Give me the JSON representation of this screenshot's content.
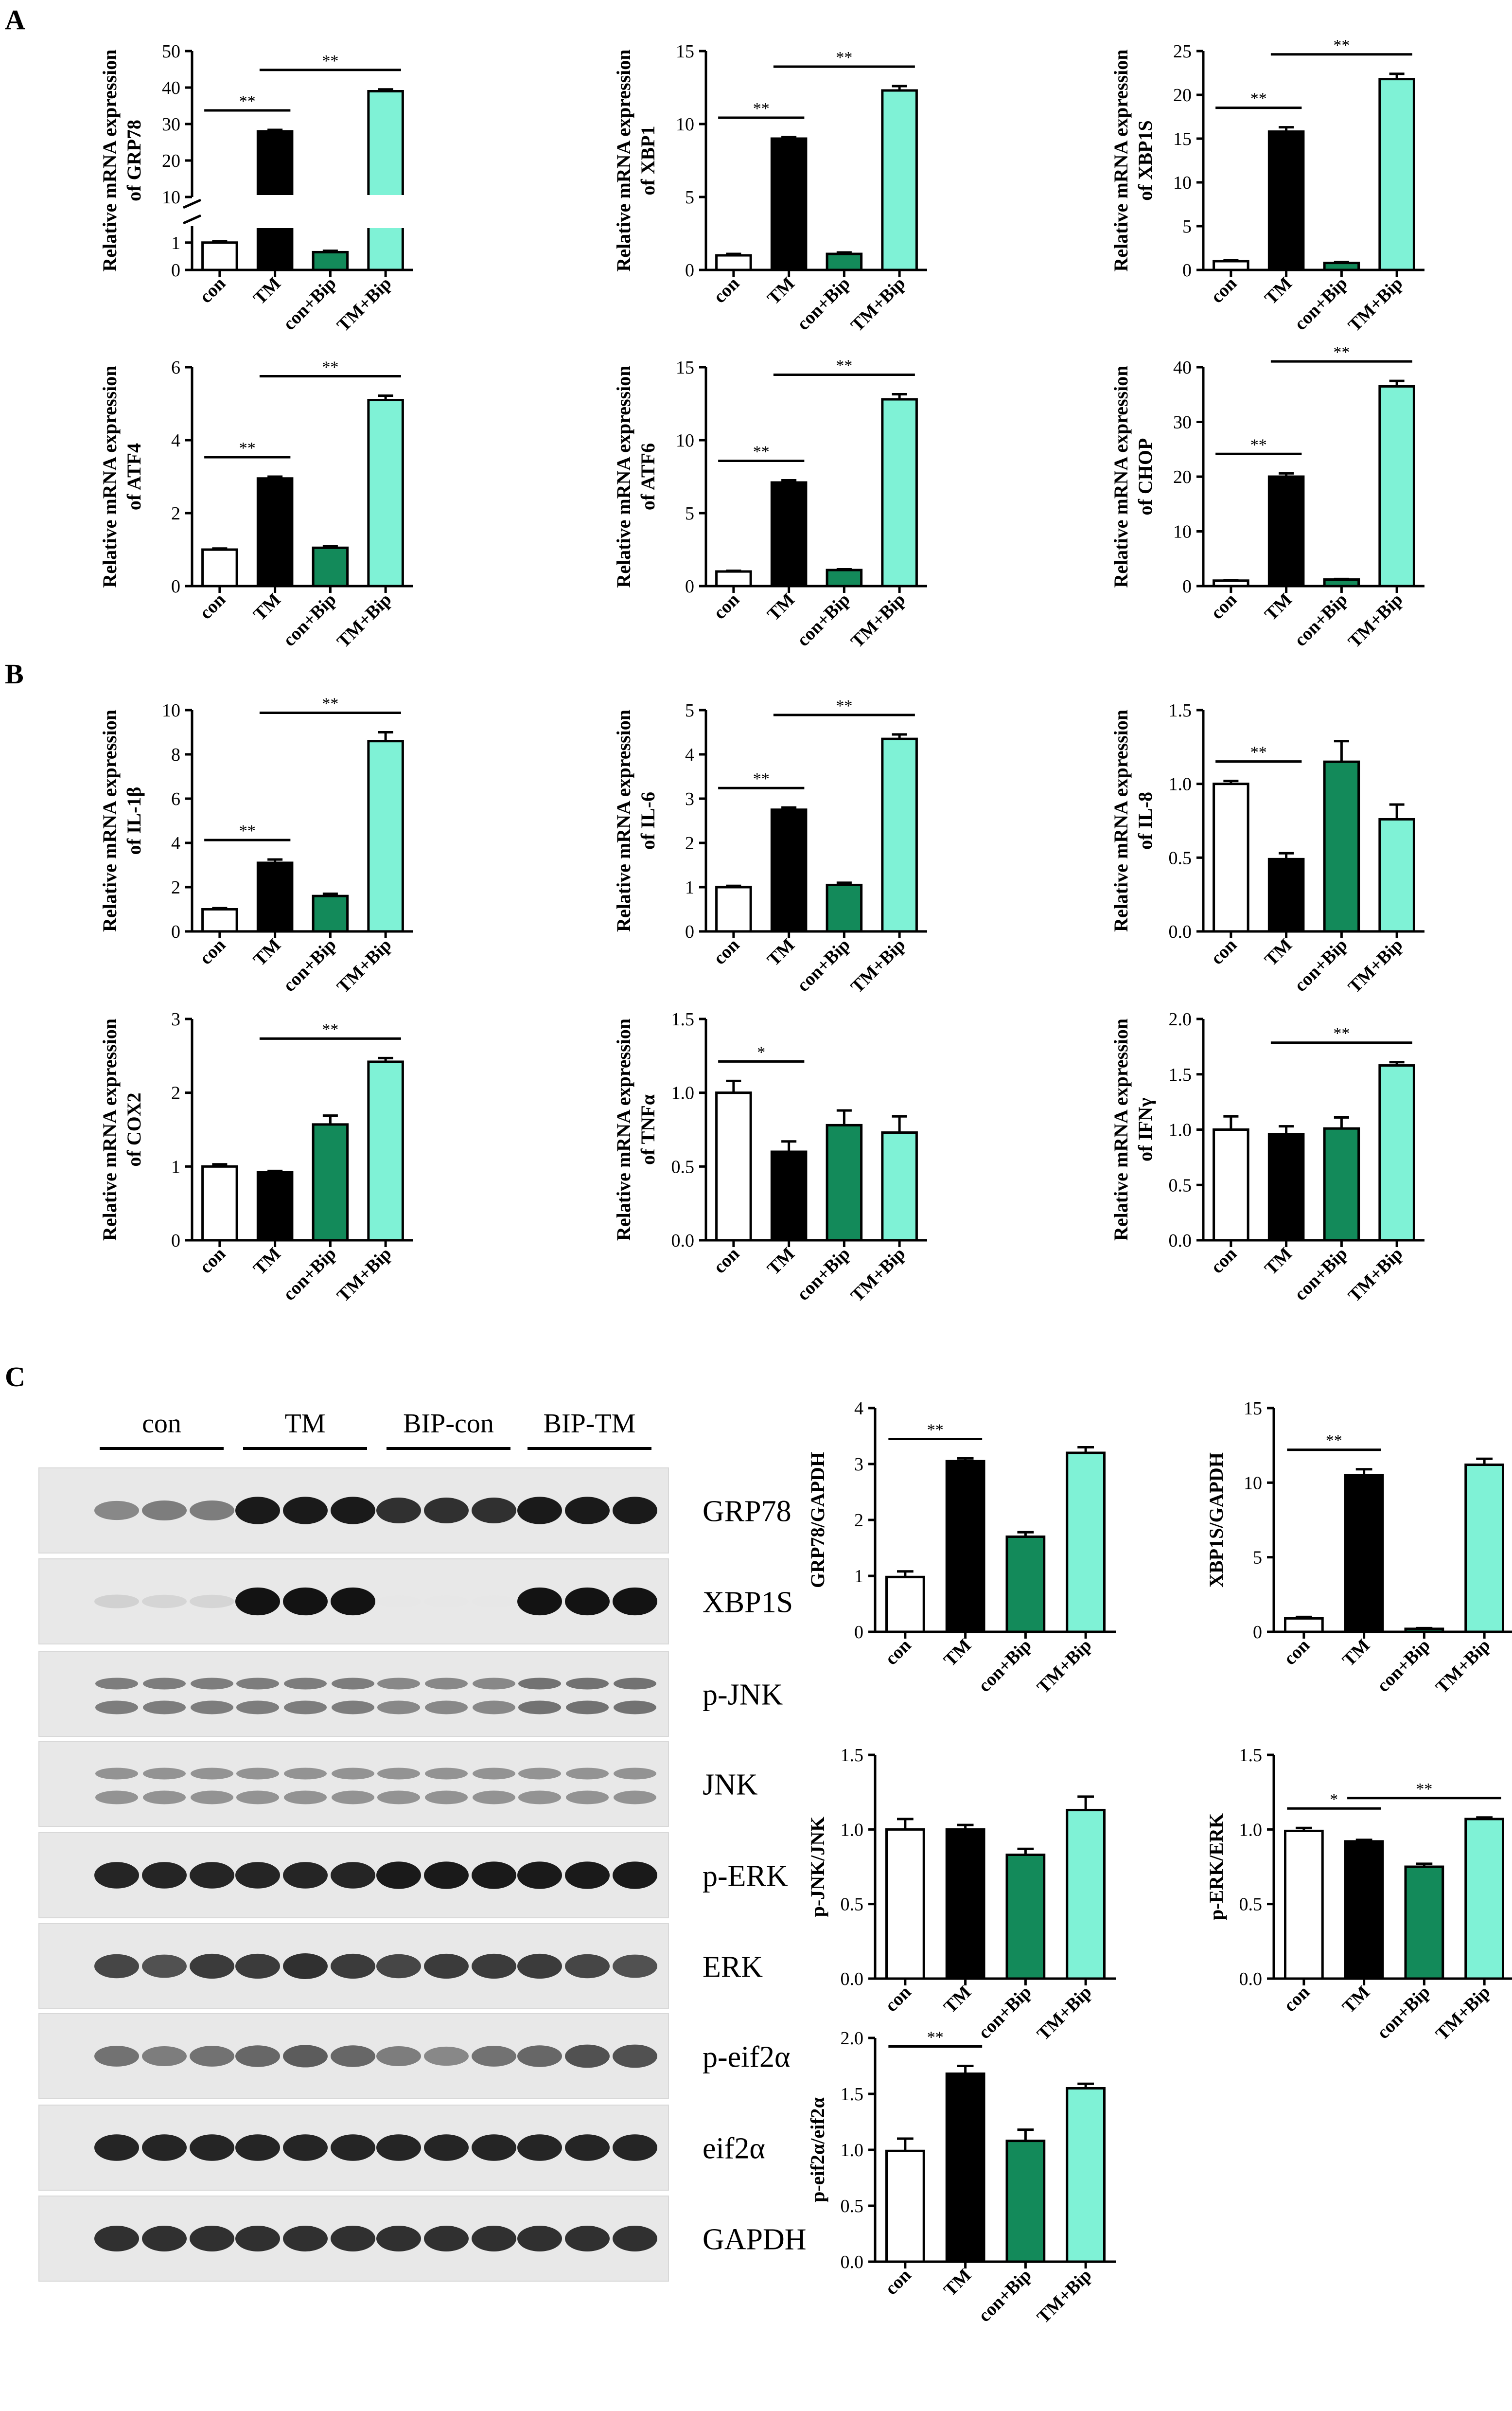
{
  "panel_labels": [
    "A",
    "B",
    "C"
  ],
  "colors": {
    "con": "#ffffff",
    "TM": "#000000",
    "con+Bip": "#138a5a",
    "TM+Bip": "#7ff2d6",
    "axis": "#000000"
  },
  "blot": {
    "groups": [
      "con",
      "TM",
      "BIP-con",
      "BIP-TM"
    ],
    "rows": [
      {
        "label": "GRP78",
        "intensity": [
          0.45,
          0.5,
          0.5,
          0.95,
          0.95,
          0.95,
          0.85,
          0.85,
          0.85,
          0.95,
          0.95,
          0.95
        ]
      },
      {
        "label": "XBP1S",
        "intensity": [
          0.12,
          0.1,
          0.1,
          0.98,
          0.98,
          0.98,
          0.02,
          0.02,
          0.02,
          0.98,
          0.98,
          0.98
        ]
      },
      {
        "label": "p-JNK",
        "intensity": [
          0.5,
          0.5,
          0.5,
          0.5,
          0.5,
          0.5,
          0.45,
          0.45,
          0.45,
          0.55,
          0.55,
          0.55
        ]
      },
      {
        "label": "JNK",
        "intensity": [
          0.4,
          0.4,
          0.4,
          0.4,
          0.4,
          0.4,
          0.4,
          0.4,
          0.4,
          0.4,
          0.4,
          0.4
        ]
      },
      {
        "label": "p-ERK",
        "intensity": [
          0.9,
          0.9,
          0.9,
          0.9,
          0.9,
          0.9,
          0.95,
          0.95,
          0.95,
          0.95,
          0.95,
          0.95
        ]
      },
      {
        "label": "ERK",
        "intensity": [
          0.75,
          0.7,
          0.8,
          0.8,
          0.85,
          0.8,
          0.75,
          0.8,
          0.8,
          0.8,
          0.75,
          0.7
        ]
      },
      {
        "label": "p-eif2α",
        "intensity": [
          0.55,
          0.5,
          0.55,
          0.6,
          0.65,
          0.6,
          0.5,
          0.45,
          0.55,
          0.6,
          0.7,
          0.7
        ]
      },
      {
        "label": "eif2α",
        "intensity": [
          0.9,
          0.9,
          0.9,
          0.9,
          0.9,
          0.9,
          0.9,
          0.9,
          0.9,
          0.9,
          0.9,
          0.9
        ]
      },
      {
        "label": "GAPDH",
        "intensity": [
          0.85,
          0.85,
          0.85,
          0.85,
          0.85,
          0.85,
          0.85,
          0.85,
          0.85,
          0.85,
          0.85,
          0.85
        ]
      }
    ]
  },
  "chart_data": [
    {
      "type": "bar",
      "panel": "A",
      "title": "",
      "ylabel": "Relative mRNA expression of GRP78",
      "categories": [
        "con",
        "TM",
        "con+Bip",
        "TM+Bip"
      ],
      "values": [
        1.0,
        28.0,
        0.65,
        39.0
      ],
      "errors": [
        0.05,
        0.4,
        0.05,
        0.5
      ],
      "ylim": [
        0,
        50
      ],
      "yticks": [
        "0",
        "1",
        "10",
        "20",
        "30",
        "40",
        "50"
      ],
      "axis_break": {
        "lower": [
          0,
          1.6
        ],
        "upper": [
          10,
          50
        ]
      },
      "sig": [
        {
          "from": "con",
          "to": "TM",
          "text": "**"
        },
        {
          "from": "TM",
          "to": "TM+Bip",
          "text": "**"
        }
      ]
    },
    {
      "type": "bar",
      "panel": "A",
      "title": "",
      "ylabel": "Relative mRNA expression of XBP1",
      "categories": [
        "con",
        "TM",
        "con+Bip",
        "TM+Bip"
      ],
      "values": [
        1.0,
        9.0,
        1.1,
        12.3
      ],
      "errors": [
        0.1,
        0.1,
        0.1,
        0.3
      ],
      "ylim": [
        0,
        15
      ],
      "yticks": [
        "0",
        "5",
        "10",
        "15"
      ],
      "sig": [
        {
          "from": "con",
          "to": "TM",
          "text": "**"
        },
        {
          "from": "TM",
          "to": "TM+Bip",
          "text": "**"
        }
      ]
    },
    {
      "type": "bar",
      "panel": "A",
      "title": "",
      "ylabel": "Relative mRNA expression of XBP1S",
      "categories": [
        "con",
        "TM",
        "con+Bip",
        "TM+Bip"
      ],
      "values": [
        1.0,
        15.8,
        0.8,
        21.8
      ],
      "errors": [
        0.1,
        0.5,
        0.1,
        0.6
      ],
      "ylim": [
        0,
        25
      ],
      "yticks": [
        "0",
        "5",
        "10",
        "15",
        "20",
        "25"
      ],
      "sig": [
        {
          "from": "con",
          "to": "TM",
          "text": "**"
        },
        {
          "from": "TM",
          "to": "TM+Bip",
          "text": "**"
        }
      ]
    },
    {
      "type": "bar",
      "panel": "A",
      "title": "",
      "ylabel": "Relative mRNA expression of ATF4",
      "categories": [
        "con",
        "TM",
        "con+Bip",
        "TM+Bip"
      ],
      "values": [
        1.0,
        2.95,
        1.05,
        5.1
      ],
      "errors": [
        0.03,
        0.05,
        0.05,
        0.12
      ],
      "ylim": [
        0,
        6
      ],
      "yticks": [
        "0",
        "2",
        "4",
        "6"
      ],
      "sig": [
        {
          "from": "con",
          "to": "TM",
          "text": "**"
        },
        {
          "from": "TM",
          "to": "TM+Bip",
          "text": "**"
        }
      ]
    },
    {
      "type": "bar",
      "panel": "A",
      "title": "",
      "ylabel": "Relative mRNA expression of ATF6",
      "categories": [
        "con",
        "TM",
        "con+Bip",
        "TM+Bip"
      ],
      "values": [
        1.0,
        7.1,
        1.1,
        12.8
      ],
      "errors": [
        0.05,
        0.15,
        0.05,
        0.35
      ],
      "ylim": [
        0,
        15
      ],
      "yticks": [
        "0",
        "5",
        "10",
        "15"
      ],
      "sig": [
        {
          "from": "con",
          "to": "TM",
          "text": "**"
        },
        {
          "from": "TM",
          "to": "TM+Bip",
          "text": "**"
        }
      ]
    },
    {
      "type": "bar",
      "panel": "A",
      "title": "",
      "ylabel": "Relative mRNA expression of CHOP",
      "categories": [
        "con",
        "TM",
        "con+Bip",
        "TM+Bip"
      ],
      "values": [
        1.0,
        20.0,
        1.2,
        36.5
      ],
      "errors": [
        0.1,
        0.6,
        0.1,
        1.0
      ],
      "ylim": [
        0,
        40
      ],
      "yticks": [
        "0",
        "10",
        "20",
        "30",
        "40"
      ],
      "sig": [
        {
          "from": "con",
          "to": "TM",
          "text": "**"
        },
        {
          "from": "TM",
          "to": "TM+Bip",
          "text": "**"
        }
      ]
    },
    {
      "type": "bar",
      "panel": "B",
      "title": "",
      "ylabel": "Relative mRNA expression of IL-1β",
      "categories": [
        "con",
        "TM",
        "con+Bip",
        "TM+Bip"
      ],
      "values": [
        1.0,
        3.1,
        1.6,
        8.6
      ],
      "errors": [
        0.05,
        0.15,
        0.1,
        0.4
      ],
      "ylim": [
        0,
        10
      ],
      "yticks": [
        "0",
        "2",
        "4",
        "6",
        "8",
        "10"
      ],
      "sig": [
        {
          "from": "con",
          "to": "TM",
          "text": "**"
        },
        {
          "from": "TM",
          "to": "TM+Bip",
          "text": "**"
        }
      ]
    },
    {
      "type": "bar",
      "panel": "B",
      "title": "",
      "ylabel": "Relative mRNA expression of IL-6",
      "categories": [
        "con",
        "TM",
        "con+Bip",
        "TM+Bip"
      ],
      "values": [
        1.0,
        2.75,
        1.05,
        4.35
      ],
      "errors": [
        0.03,
        0.05,
        0.05,
        0.1
      ],
      "ylim": [
        0,
        5
      ],
      "yticks": [
        "0",
        "1",
        "2",
        "3",
        "4",
        "5"
      ],
      "sig": [
        {
          "from": "con",
          "to": "TM",
          "text": "**"
        },
        {
          "from": "TM",
          "to": "TM+Bip",
          "text": "**"
        }
      ]
    },
    {
      "type": "bar",
      "panel": "B",
      "title": "",
      "ylabel": "Relative mRNA expression of IL-8",
      "categories": [
        "con",
        "TM",
        "con+Bip",
        "TM+Bip"
      ],
      "values": [
        1.0,
        0.49,
        1.15,
        0.76
      ],
      "errors": [
        0.02,
        0.04,
        0.14,
        0.1
      ],
      "ylim": [
        0,
        1.5
      ],
      "yticks": [
        "0.0",
        "0.5",
        "1.0",
        "1.5"
      ],
      "sig": [
        {
          "from": "con",
          "to": "TM",
          "text": "**"
        }
      ]
    },
    {
      "type": "bar",
      "panel": "B",
      "title": "",
      "ylabel": "Relative mRNA expression of COX2",
      "categories": [
        "con",
        "TM",
        "con+Bip",
        "TM+Bip"
      ],
      "values": [
        1.0,
        0.92,
        1.57,
        2.42
      ],
      "errors": [
        0.03,
        0.02,
        0.12,
        0.05
      ],
      "ylim": [
        0,
        3
      ],
      "yticks": [
        "0",
        "1",
        "2",
        "3"
      ],
      "sig": [
        {
          "from": "TM",
          "to": "TM+Bip",
          "text": "**"
        }
      ]
    },
    {
      "type": "bar",
      "panel": "B",
      "title": "",
      "ylabel": "Relative mRNA expression of TNFα",
      "categories": [
        "con",
        "TM",
        "con+Bip",
        "TM+Bip"
      ],
      "values": [
        1.0,
        0.6,
        0.78,
        0.73
      ],
      "errors": [
        0.08,
        0.07,
        0.1,
        0.11
      ],
      "ylim": [
        0,
        1.5
      ],
      "yticks": [
        "0.0",
        "0.5",
        "1.0",
        "1.5"
      ],
      "sig": [
        {
          "from": "con",
          "to": "TM",
          "text": "*"
        }
      ]
    },
    {
      "type": "bar",
      "panel": "B",
      "title": "",
      "ylabel": "Relative mRNA expression of IFNγ",
      "categories": [
        "con",
        "TM",
        "con+Bip",
        "TM+Bip"
      ],
      "values": [
        1.0,
        0.96,
        1.01,
        1.58
      ],
      "errors": [
        0.12,
        0.07,
        0.1,
        0.03
      ],
      "ylim": [
        0,
        2.0
      ],
      "yticks": [
        "0.0",
        "0.5",
        "1.0",
        "1.5",
        "2.0"
      ],
      "sig": [
        {
          "from": "TM",
          "to": "TM+Bip",
          "text": "**"
        }
      ]
    },
    {
      "type": "bar",
      "panel": "C",
      "title": "",
      "ylabel": "GRP78/GAPDH",
      "categories": [
        "con",
        "TM",
        "con+Bip",
        "TM+Bip"
      ],
      "values": [
        0.98,
        3.05,
        1.7,
        3.2
      ],
      "errors": [
        0.1,
        0.05,
        0.08,
        0.1
      ],
      "ylim": [
        0,
        4
      ],
      "yticks": [
        "0",
        "1",
        "2",
        "3",
        "4"
      ],
      "sig": [
        {
          "from": "con",
          "to": "TM",
          "text": "**"
        }
      ]
    },
    {
      "type": "bar",
      "panel": "C",
      "title": "",
      "ylabel": "XBP1S/GAPDH",
      "categories": [
        "con",
        "TM",
        "con+Bip",
        "TM+Bip"
      ],
      "values": [
        0.9,
        10.5,
        0.2,
        11.2
      ],
      "errors": [
        0.1,
        0.4,
        0.05,
        0.4
      ],
      "ylim": [
        0,
        15
      ],
      "yticks": [
        "0",
        "5",
        "10",
        "15"
      ],
      "sig": [
        {
          "from": "con",
          "to": "TM",
          "text": "**"
        }
      ]
    },
    {
      "type": "bar",
      "panel": "C",
      "title": "",
      "ylabel": "p-JNK/JNK",
      "categories": [
        "con",
        "TM",
        "con+Bip",
        "TM+Bip"
      ],
      "values": [
        1.0,
        1.0,
        0.83,
        1.13
      ],
      "errors": [
        0.07,
        0.03,
        0.04,
        0.09
      ],
      "ylim": [
        0,
        1.5
      ],
      "yticks": [
        "0.0",
        "0.5",
        "1.0",
        "1.5"
      ],
      "sig": []
    },
    {
      "type": "bar",
      "panel": "C",
      "title": "",
      "ylabel": "p-ERK/ERK",
      "categories": [
        "con",
        "TM",
        "con+Bip",
        "TM+Bip"
      ],
      "values": [
        0.99,
        0.92,
        0.75,
        1.07
      ],
      "errors": [
        0.02,
        0.01,
        0.02,
        0.01
      ],
      "ylim": [
        0,
        1.5
      ],
      "yticks": [
        "0.0",
        "0.5",
        "1.0",
        "1.5"
      ],
      "sig": [
        {
          "from": "con",
          "to": "TM",
          "text": "*"
        },
        {
          "from": "TM",
          "to": "TM+Bip",
          "text": "**"
        }
      ]
    },
    {
      "type": "bar",
      "panel": "C",
      "title": "",
      "ylabel": "p-eif2α/eif2α",
      "categories": [
        "con",
        "TM",
        "con+Bip",
        "TM+Bip"
      ],
      "values": [
        0.99,
        1.68,
        1.08,
        1.55
      ],
      "errors": [
        0.11,
        0.07,
        0.1,
        0.04
      ],
      "ylim": [
        0,
        2.0
      ],
      "yticks": [
        "0.0",
        "0.5",
        "1.0",
        "1.5",
        "2.0"
      ],
      "sig": [
        {
          "from": "con",
          "to": "TM",
          "text": "**"
        }
      ]
    }
  ]
}
